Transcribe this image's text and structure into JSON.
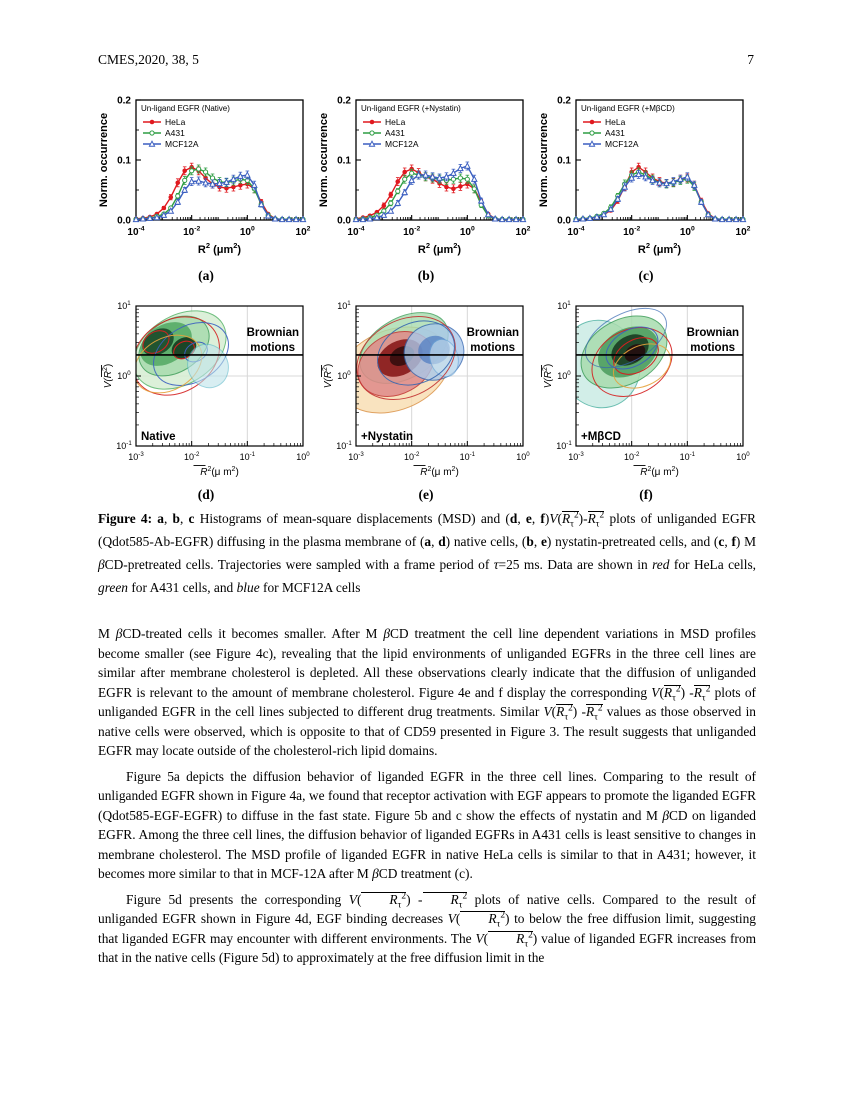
{
  "header": {
    "journal": "CMES,2020, 38, 5",
    "page": "7"
  },
  "figure": {
    "sublabels_top": [
      "(a)",
      "(b)",
      "(c)"
    ],
    "sublabels_bottom": [
      "(d)",
      "(e)",
      "(f)"
    ],
    "caption": [
      {
        "t": "Figure 4: ",
        "b": 1
      },
      {
        "t": "a",
        "b": 1
      },
      {
        "t": ", "
      },
      {
        "t": "b",
        "b": 1
      },
      {
        "t": ", "
      },
      {
        "t": "c",
        "b": 1
      },
      {
        "t": " Histograms of mean-square displacements (MSD) and ("
      },
      {
        "t": "d",
        "b": 1
      },
      {
        "t": ", "
      },
      {
        "t": "e",
        "b": 1
      },
      {
        "t": ", "
      },
      {
        "t": "f",
        "b": 1
      },
      {
        "t": ")"
      },
      {
        "ref": "math.vr2"
      },
      {
        "t": "-"
      },
      {
        "ref": "math.r2"
      },
      {
        "t": " plots of unliganded EGFR (Qdot585-Ab-EGFR) diffusing in the plasma membrane of ("
      },
      {
        "t": "a",
        "b": 1
      },
      {
        "t": ", "
      },
      {
        "t": "d",
        "b": 1
      },
      {
        "t": ") native cells, ("
      },
      {
        "t": "b",
        "b": 1
      },
      {
        "t": ", "
      },
      {
        "t": "e",
        "b": 1
      },
      {
        "t": ") nystatin-pretreated cells, and ("
      },
      {
        "t": "c",
        "b": 1
      },
      {
        "t": ", "
      },
      {
        "t": "f",
        "b": 1
      },
      {
        "t": ") M "
      },
      {
        "t": "β",
        "i": 1
      },
      {
        "t": "CD-pretreated cells. Trajectories were sampled with a frame period of "
      },
      {
        "t": "τ",
        "i": 1
      },
      {
        "t": "=25 ms. Data are shown in "
      },
      {
        "t": "red",
        "i": 1
      },
      {
        "t": " for HeLa cells, "
      },
      {
        "t": "green",
        "i": 1
      },
      {
        "t": " for A431 cells, and "
      },
      {
        "t": "blue",
        "i": 1
      },
      {
        "t": " for MCF12A cells"
      }
    ]
  },
  "math": {
    "vr2": [
      {
        "t": "V",
        "i": 1
      },
      {
        "t": "("
      },
      {
        "t": "R",
        "i": 1,
        "ov": 1
      },
      {
        "t": "τ",
        "sub": 1,
        "ov": 1
      },
      {
        "t": "2",
        "sup": 1,
        "ov": 1
      },
      {
        "t": ")"
      }
    ],
    "r2": [
      {
        "t": "R",
        "i": 1,
        "ov": 1
      },
      {
        "t": "τ",
        "sub": 1,
        "ov": 1
      },
      {
        "t": "2",
        "sup": 1,
        "ov": 1
      }
    ]
  },
  "body": {
    "p1": [
      {
        "t": "M "
      },
      {
        "t": "β",
        "i": 1
      },
      {
        "t": "CD-treated cells it becomes smaller. After M "
      },
      {
        "t": "β",
        "i": 1
      },
      {
        "t": "CD treatment the cell line dependent variations in MSD profiles become smaller (see Figure 4c), revealing that the lipid environments of unliganded EGFRs in the three cell lines are similar after membrane cholesterol is depleted. All these observations clearly indicate that the diffusion of unliganded EGFR is relevant to the amount of membrane cholesterol. Figure 4e and f display the corresponding "
      },
      {
        "ref": "math.vr2"
      },
      {
        "t": " -"
      },
      {
        "ref": "math.r2"
      },
      {
        "t": " plots of unliganded EGFR in the cell lines subjected to different drug treatments. Similar "
      },
      {
        "ref": "math.vr2"
      },
      {
        "t": " -"
      },
      {
        "ref": "math.r2"
      },
      {
        "t": " values as those observed in native cells were observed, which is opposite to that of CD59 presented in Figure 3. The result suggests that unliganded EGFR may locate outside of the cholesterol-rich lipid domains."
      }
    ],
    "p2": [
      {
        "t": "Figure 5a depicts the diffusion behavior of liganded EGFR in the three cell lines. Comparing to the result of unliganded EGFR shown in Figure 4a, we found that receptor activation with EGF appears to promote the liganded EGFR (Qdot585-EGF-EGFR) to diffuse in the fast state. Figure 5b and c show the effects of nystatin and M "
      },
      {
        "t": "β",
        "i": 1
      },
      {
        "t": "CD on liganded EGFR. Among the three cell lines, the diffusion behavior of liganded EGFRs in A431 cells is least sensitive to changes in membrane cholesterol. The MSD profile of liganded EGFR in native HeLa cells is similar to that in A431; however, it becomes more similar to that in MCF-12A after M "
      },
      {
        "t": "β",
        "i": 1
      },
      {
        "t": "CD treatment (c)."
      }
    ],
    "p3": [
      {
        "t": "Figure 5d presents the corresponding "
      },
      {
        "ref": "math.vr2"
      },
      {
        "t": " -"
      },
      {
        "ref": "math.r2"
      },
      {
        "t": " plots of native cells. Compared to the result of unliganded EGFR shown in Figure 4d, EGF binding decreases "
      },
      {
        "ref": "math.vr2"
      },
      {
        "t": " to below the free diffusion limit, suggesting that liganded EGFR may encounter with different environments. The "
      },
      {
        "ref": "math.vr2"
      },
      {
        "t": " value of liganded EGFR increases from that in the native cells (Figure 5d) to approximately at the free diffusion limit in the"
      }
    ]
  },
  "chart_data": [
    {
      "type": "line",
      "panel": "a",
      "title": "Un-ligand EGFR (Native)",
      "xlabel": "R² (μm²)",
      "ylabel": "Norm. occurrence",
      "xlim_log10": [
        -4,
        2
      ],
      "ylim": [
        0,
        0.2
      ],
      "xticks": [
        "10⁻⁴",
        "10⁻²",
        "10⁰",
        "10²"
      ],
      "yticks": [
        0.0,
        0.1,
        0.2
      ],
      "x_log10": [
        -4,
        -3.75,
        -3.5,
        -3.25,
        -3,
        -2.75,
        -2.5,
        -2.25,
        -2,
        -1.75,
        -1.5,
        -1.25,
        -1,
        -0.75,
        -0.5,
        -0.25,
        0,
        0.25,
        0.5,
        0.75,
        1,
        1.25,
        1.5,
        1.75,
        2
      ],
      "series": [
        {
          "name": "HeLa",
          "color": "#e0191f",
          "marker": "filled-circle",
          "values": [
            0.002,
            0.003,
            0.005,
            0.01,
            0.02,
            0.038,
            0.062,
            0.082,
            0.088,
            0.082,
            0.07,
            0.06,
            0.055,
            0.053,
            0.055,
            0.058,
            0.06,
            0.052,
            0.03,
            0.01,
            0.002,
            0.001,
            0.001,
            0.001,
            0.001
          ]
        },
        {
          "name": "A431",
          "color": "#2f9e44",
          "marker": "open-circle",
          "values": [
            0.001,
            0.002,
            0.003,
            0.006,
            0.01,
            0.02,
            0.04,
            0.066,
            0.082,
            0.085,
            0.08,
            0.07,
            0.064,
            0.062,
            0.065,
            0.068,
            0.066,
            0.052,
            0.026,
            0.008,
            0.002,
            0.001,
            0.001,
            0.001,
            0.001
          ]
        },
        {
          "name": "MCF12A",
          "color": "#3b5fc0",
          "marker": "open-triangle",
          "values": [
            0.001,
            0.002,
            0.003,
            0.004,
            0.008,
            0.015,
            0.03,
            0.05,
            0.064,
            0.065,
            0.062,
            0.06,
            0.061,
            0.063,
            0.068,
            0.073,
            0.075,
            0.058,
            0.026,
            0.007,
            0.002,
            0.001,
            0.001,
            0.001,
            0.001
          ]
        }
      ]
    },
    {
      "type": "line",
      "panel": "b",
      "title": "Un-ligand EGFR (+Nystatin)",
      "xlabel": "R² (μm²)",
      "ylabel": "Norm. occurrence",
      "xlim_log10": [
        -4,
        2
      ],
      "ylim": [
        0,
        0.2
      ],
      "xticks": [
        "10⁻⁴",
        "10⁻²",
        "10⁰",
        "10²"
      ],
      "yticks": [
        0.0,
        0.1,
        0.2
      ],
      "x_log10": [
        -4,
        -3.75,
        -3.5,
        -3.25,
        -3,
        -2.75,
        -2.5,
        -2.25,
        -2,
        -1.75,
        -1.5,
        -1.25,
        -1,
        -0.75,
        -0.5,
        -0.25,
        0,
        0.25,
        0.5,
        0.75,
        1,
        1.25,
        1.5,
        1.75,
        2
      ],
      "series": [
        {
          "name": "HeLa",
          "color": "#e0191f",
          "marker": "filled-circle",
          "values": [
            0.002,
            0.004,
            0.007,
            0.013,
            0.024,
            0.042,
            0.064,
            0.08,
            0.085,
            0.079,
            0.072,
            0.068,
            0.061,
            0.055,
            0.052,
            0.056,
            0.06,
            0.052,
            0.03,
            0.01,
            0.002,
            0.001,
            0.001,
            0.001,
            0.001
          ]
        },
        {
          "name": "A431",
          "color": "#2f9e44",
          "marker": "open-circle",
          "values": [
            0.001,
            0.002,
            0.004,
            0.008,
            0.015,
            0.028,
            0.048,
            0.068,
            0.078,
            0.075,
            0.072,
            0.07,
            0.068,
            0.066,
            0.068,
            0.07,
            0.068,
            0.052,
            0.025,
            0.007,
            0.002,
            0.001,
            0.001,
            0.001,
            0.001
          ]
        },
        {
          "name": "MCF12A",
          "color": "#3b5fc0",
          "marker": "open-triangle",
          "values": [
            0.001,
            0.001,
            0.002,
            0.004,
            0.008,
            0.015,
            0.028,
            0.046,
            0.066,
            0.075,
            0.075,
            0.072,
            0.07,
            0.072,
            0.078,
            0.086,
            0.09,
            0.068,
            0.032,
            0.009,
            0.002,
            0.001,
            0.001,
            0.001,
            0.001
          ]
        }
      ]
    },
    {
      "type": "line",
      "panel": "c",
      "title": "Un-ligand EGFR (+MβCD)",
      "xlabel": "R² (μm²)",
      "ylabel": "Norm. occurrence",
      "xlim_log10": [
        -4,
        2
      ],
      "ylim": [
        0,
        0.2
      ],
      "xticks": [
        "10⁻⁴",
        "10⁻²",
        "10⁰",
        "10²"
      ],
      "yticks": [
        0.0,
        0.1,
        0.2
      ],
      "x_log10": [
        -4,
        -3.75,
        -3.5,
        -3.25,
        -3,
        -2.75,
        -2.5,
        -2.25,
        -2,
        -1.75,
        -1.5,
        -1.25,
        -1,
        -0.75,
        -0.5,
        -0.25,
        0,
        0.25,
        0.5,
        0.75,
        1,
        1.25,
        1.5,
        1.75,
        2
      ],
      "series": [
        {
          "name": "HeLa",
          "color": "#e0191f",
          "marker": "filled-circle",
          "values": [
            0.001,
            0.002,
            0.003,
            0.005,
            0.009,
            0.016,
            0.032,
            0.056,
            0.08,
            0.088,
            0.08,
            0.07,
            0.064,
            0.061,
            0.063,
            0.068,
            0.07,
            0.058,
            0.032,
            0.011,
            0.002,
            0.001,
            0.001,
            0.001,
            0.001
          ]
        },
        {
          "name": "A431",
          "color": "#2f9e44",
          "marker": "open-circle",
          "values": [
            0.001,
            0.002,
            0.003,
            0.006,
            0.011,
            0.021,
            0.04,
            0.06,
            0.075,
            0.08,
            0.075,
            0.068,
            0.062,
            0.06,
            0.062,
            0.066,
            0.068,
            0.056,
            0.03,
            0.009,
            0.002,
            0.001,
            0.001,
            0.001,
            0.001
          ]
        },
        {
          "name": "MCF12A",
          "color": "#3b5fc0",
          "marker": "open-triangle",
          "values": [
            0.001,
            0.002,
            0.003,
            0.005,
            0.009,
            0.018,
            0.035,
            0.055,
            0.07,
            0.076,
            0.072,
            0.066,
            0.062,
            0.061,
            0.064,
            0.068,
            0.072,
            0.058,
            0.03,
            0.009,
            0.002,
            0.001,
            0.001,
            0.001,
            0.001
          ]
        }
      ]
    },
    {
      "type": "contour",
      "panel": "d",
      "condition_label": "Native",
      "region_annotation": "Brownian motions",
      "xlabel": "R̄²(μ m²)",
      "ylabel": "V(R̄²)",
      "xlim_log10": [
        -3,
        0
      ],
      "ylim_log10": [
        -1,
        1
      ],
      "xticks": [
        "10⁻³",
        "10⁻²",
        "10⁻¹",
        "10⁰"
      ],
      "yticks": [
        "10⁻¹",
        "10⁰",
        "10¹"
      ],
      "free_diffusion_limit_V": 2,
      "density_center": {
        "x_um2": 0.004,
        "V": 3
      },
      "series": [
        {
          "name": "HeLa",
          "color": "#d42020"
        },
        {
          "name": "A431",
          "color": "#2f9e44"
        },
        {
          "name": "MCF12A",
          "color": "#3b5fc0"
        }
      ]
    },
    {
      "type": "contour",
      "panel": "e",
      "condition_label": "+Nystatin",
      "region_annotation": "Brownian motions",
      "xlabel": "R̄²(μ m²)",
      "ylabel": "V(R̄²)",
      "xlim_log10": [
        -3,
        0
      ],
      "ylim_log10": [
        -1,
        1
      ],
      "xticks": [
        "10⁻³",
        "10⁻²",
        "10⁻¹",
        "10⁰"
      ],
      "yticks": [
        "10⁻¹",
        "10⁰",
        "10¹"
      ],
      "free_diffusion_limit_V": 2,
      "density_center": {
        "x_um2": 0.007,
        "V": 2.5
      },
      "series": [
        {
          "name": "HeLa",
          "color": "#d42020"
        },
        {
          "name": "A431",
          "color": "#2f9e44"
        },
        {
          "name": "MCF12A",
          "color": "#3b5fc0"
        }
      ]
    },
    {
      "type": "contour",
      "panel": "f",
      "condition_label": "+MβCD",
      "region_annotation": "Brownian motions",
      "xlabel": "R̄²(μ m²)",
      "ylabel": "V(R̄²)",
      "xlim_log10": [
        -3,
        0
      ],
      "ylim_log10": [
        -1,
        1
      ],
      "xticks": [
        "10⁻³",
        "10⁻²",
        "10⁻¹",
        "10⁰"
      ],
      "yticks": [
        "10⁻¹",
        "10⁰",
        "10¹"
      ],
      "free_diffusion_limit_V": 2,
      "density_center": {
        "x_um2": 0.008,
        "V": 2.8
      },
      "series": [
        {
          "name": "HeLa",
          "color": "#d42020"
        },
        {
          "name": "A431",
          "color": "#2f9e44"
        },
        {
          "name": "MCF12A",
          "color": "#3b5fc0"
        }
      ]
    }
  ]
}
